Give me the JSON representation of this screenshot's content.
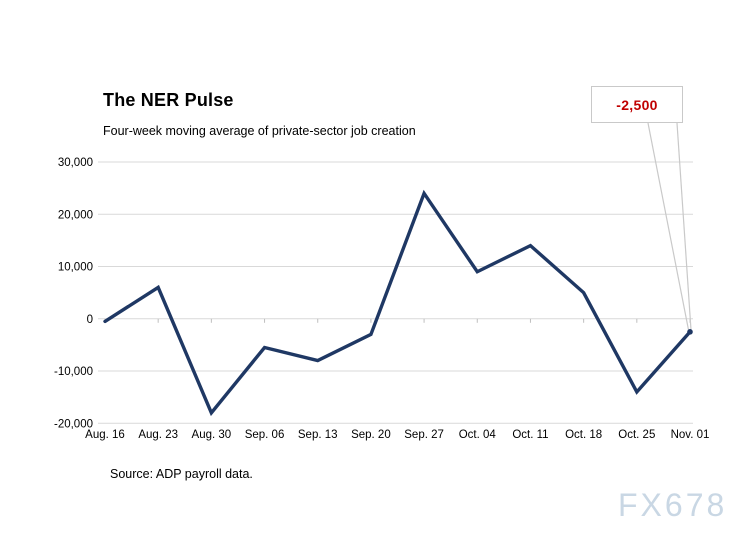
{
  "page": {
    "background": "#ffffff"
  },
  "chart": {
    "title": "The NER Pulse",
    "subtitle": "Four-week moving average of private-sector job creation",
    "source": "Source: ADP payroll data.",
    "watermark": "FX678",
    "callout": {
      "label": "-2,500",
      "color": "#c00000",
      "border_color": "#c9c9c9"
    }
  },
  "chart_data": {
    "type": "line",
    "title": "The NER Pulse",
    "subtitle": "Four-week moving average of private-sector job creation",
    "categories": [
      "Aug. 16",
      "Aug. 23",
      "Aug. 30",
      "Sep. 06",
      "Sep. 13",
      "Sep. 20",
      "Sep. 27",
      "Oct. 04",
      "Oct. 11",
      "Oct. 18",
      "Oct. 25",
      "Nov. 01"
    ],
    "values": [
      -500,
      6000,
      -18000,
      -5500,
      -8000,
      -3000,
      24000,
      9000,
      14000,
      5000,
      -14000,
      -2500
    ],
    "xlabel": "",
    "ylabel": "",
    "ylim": [
      -20000,
      30000
    ],
    "yticks": [
      {
        "value": 30000,
        "label": "30,000"
      },
      {
        "value": 20000,
        "label": "20,000"
      },
      {
        "value": 10000,
        "label": "10,000"
      },
      {
        "value": 0,
        "label": "0"
      },
      {
        "value": -10000,
        "label": "-10,000"
      },
      {
        "value": -20000,
        "label": "-20,000"
      }
    ],
    "grid": true,
    "legend": "none",
    "line_color": "#1f3864",
    "grid_color": "#d9d9d9",
    "tick_color": "#bfbfbf",
    "label_color": "#000000",
    "annotation": {
      "text": "-2,500",
      "target_category": "Nov. 01",
      "target_value": -2500
    }
  }
}
